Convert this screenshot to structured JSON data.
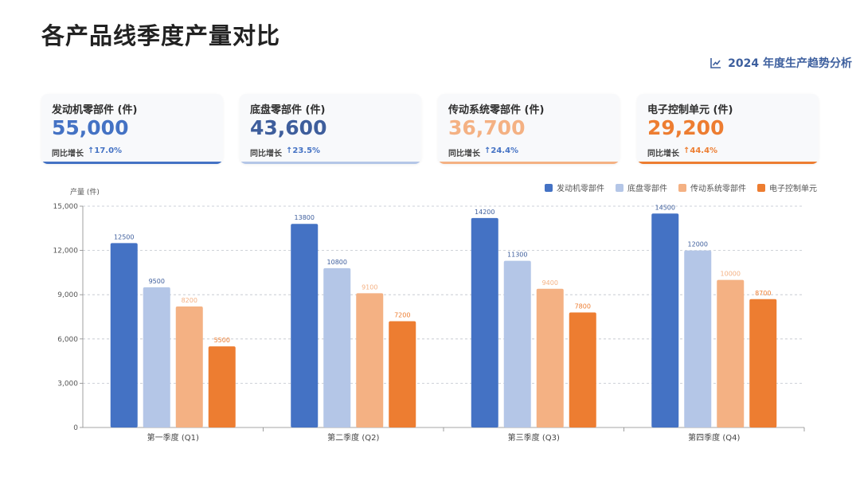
{
  "header": {
    "title": "各产品线季度产量对比",
    "subtitle": "2024 年度生产趋势分析",
    "subtitle_icon": "line-chart-icon"
  },
  "colors": {
    "engine": "#4472c4",
    "chassis": "#b4c6e7",
    "transmission": "#f4b183",
    "electronic": "#ed7d31",
    "subtitle": "#3d5f9e"
  },
  "cards": [
    {
      "label": "发动机零部件 (件)",
      "value": "55,000",
      "growth_label": "同比增长",
      "growth_value": "↑17.0%",
      "color": "#4472c4"
    },
    {
      "label": "底盘零部件 (件)",
      "value": "43,600",
      "growth_label": "同比增长",
      "growth_value": "↑23.5%",
      "color": "#b4c6e7"
    },
    {
      "label": "传动系统零部件 (件)",
      "value": "36,700",
      "growth_label": "同比增长",
      "growth_value": "↑24.4%",
      "color": "#f4b183"
    },
    {
      "label": "电子控制单元 (件)",
      "value": "29,200",
      "growth_label": "同比增长",
      "growth_value": "↑44.4%",
      "color": "#ed7d31"
    }
  ],
  "chart_data": {
    "type": "bar",
    "title": "",
    "ylabel": "产量 (件)",
    "xlabel": "",
    "ylim": [
      0,
      15000
    ],
    "yticks": [
      "0",
      "3,000",
      "6,000",
      "9,000",
      "12,000",
      "15,000"
    ],
    "ytick_values": [
      0,
      3000,
      6000,
      9000,
      12000,
      15000
    ],
    "grid": "horizontal dashed",
    "legend_position": "top-right",
    "categories": [
      "第一季度 (Q1)",
      "第二季度 (Q2)",
      "第三季度 (Q3)",
      "第四季度 (Q4)"
    ],
    "series": [
      {
        "name": "发动机零部件",
        "color": "#4472c4",
        "values": [
          12500,
          13800,
          14200,
          14500
        ]
      },
      {
        "name": "底盘零部件",
        "color": "#b4c6e7",
        "values": [
          9500,
          10800,
          11300,
          12000
        ]
      },
      {
        "name": "传动系统零部件",
        "color": "#f4b183",
        "values": [
          8200,
          9100,
          9400,
          10000
        ]
      },
      {
        "name": "电子控制单元",
        "color": "#ed7d31",
        "values": [
          5500,
          7200,
          7800,
          8700
        ]
      }
    ]
  }
}
